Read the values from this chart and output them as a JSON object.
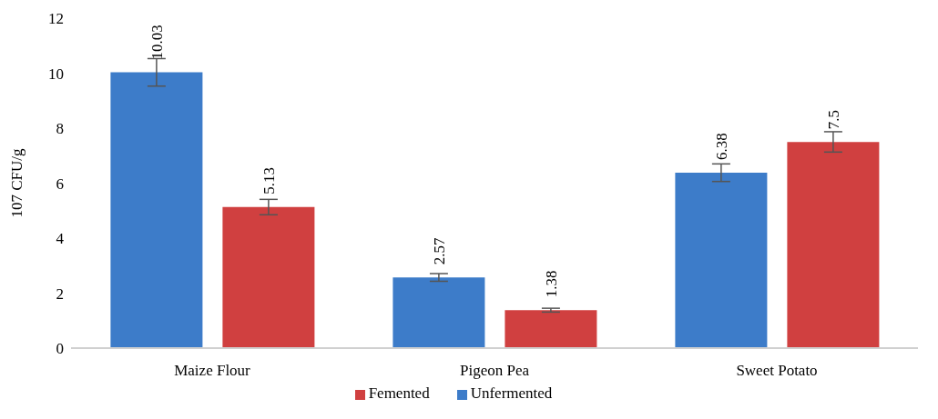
{
  "chart_data": {
    "type": "bar",
    "ylabel": "107 CFU/g",
    "categories": [
      "Maize Flour",
      "Pigeon Pea",
      "Sweet Potato"
    ],
    "series": [
      {
        "name": "Unfermented",
        "color": "#3d7cc9",
        "values": [
          10.03,
          2.57,
          6.38
        ],
        "errors": [
          0.5,
          0.14,
          0.32
        ]
      },
      {
        "name": "Femented",
        "color": "#d04040",
        "values": [
          5.13,
          1.38,
          7.5
        ],
        "errors": [
          0.28,
          0.07,
          0.37
        ]
      }
    ],
    "ylim": [
      0,
      12
    ],
    "yticks": [
      0,
      2,
      4,
      6,
      8,
      10,
      12
    ],
    "grid": false,
    "legend": "bottom",
    "data_labels": true
  }
}
